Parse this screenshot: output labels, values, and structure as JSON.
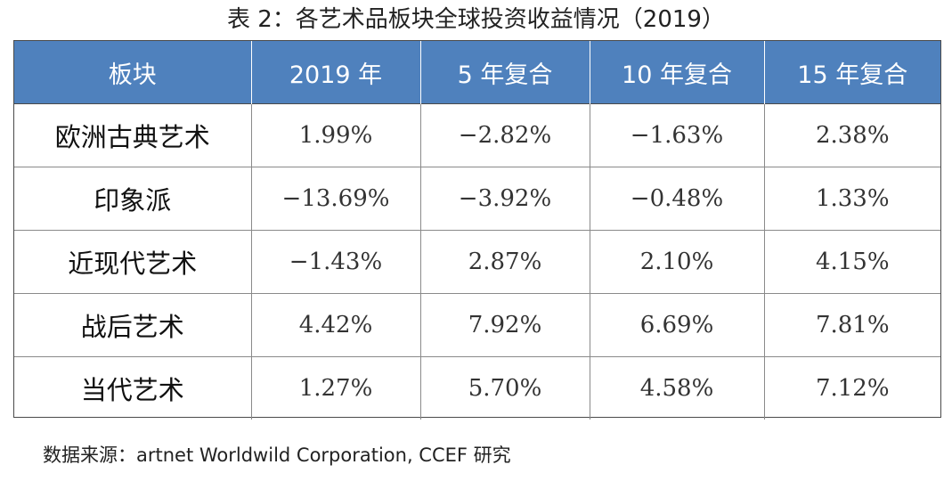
{
  "title": "表 2：各艺术品板块全球投资收益情况（2019）",
  "table": {
    "headers": [
      "板块",
      "2019 年",
      "5 年复合",
      "10 年复合",
      "15 年复合"
    ],
    "rows": [
      [
        "欧洲古典艺术",
        "1.99%",
        "−2.82%",
        "−1.63%",
        "2.38%"
      ],
      [
        "印象派",
        "−13.69%",
        "−3.92%",
        "−0.48%",
        "1.33%"
      ],
      [
        "近现代艺术",
        "−1.43%",
        "2.87%",
        "2.10%",
        "4.15%"
      ],
      [
        "战后艺术",
        "4.42%",
        "7.92%",
        "6.69%",
        "7.81%"
      ],
      [
        "当代艺术",
        "1.27%",
        "5.70%",
        "4.58%",
        "7.12%"
      ]
    ]
  },
  "source": "数据来源：artnet Worldwild Corporation, CCEF 研究",
  "colors": {
    "header_bg": "#4f81bd",
    "header_text": "#ffffff"
  }
}
